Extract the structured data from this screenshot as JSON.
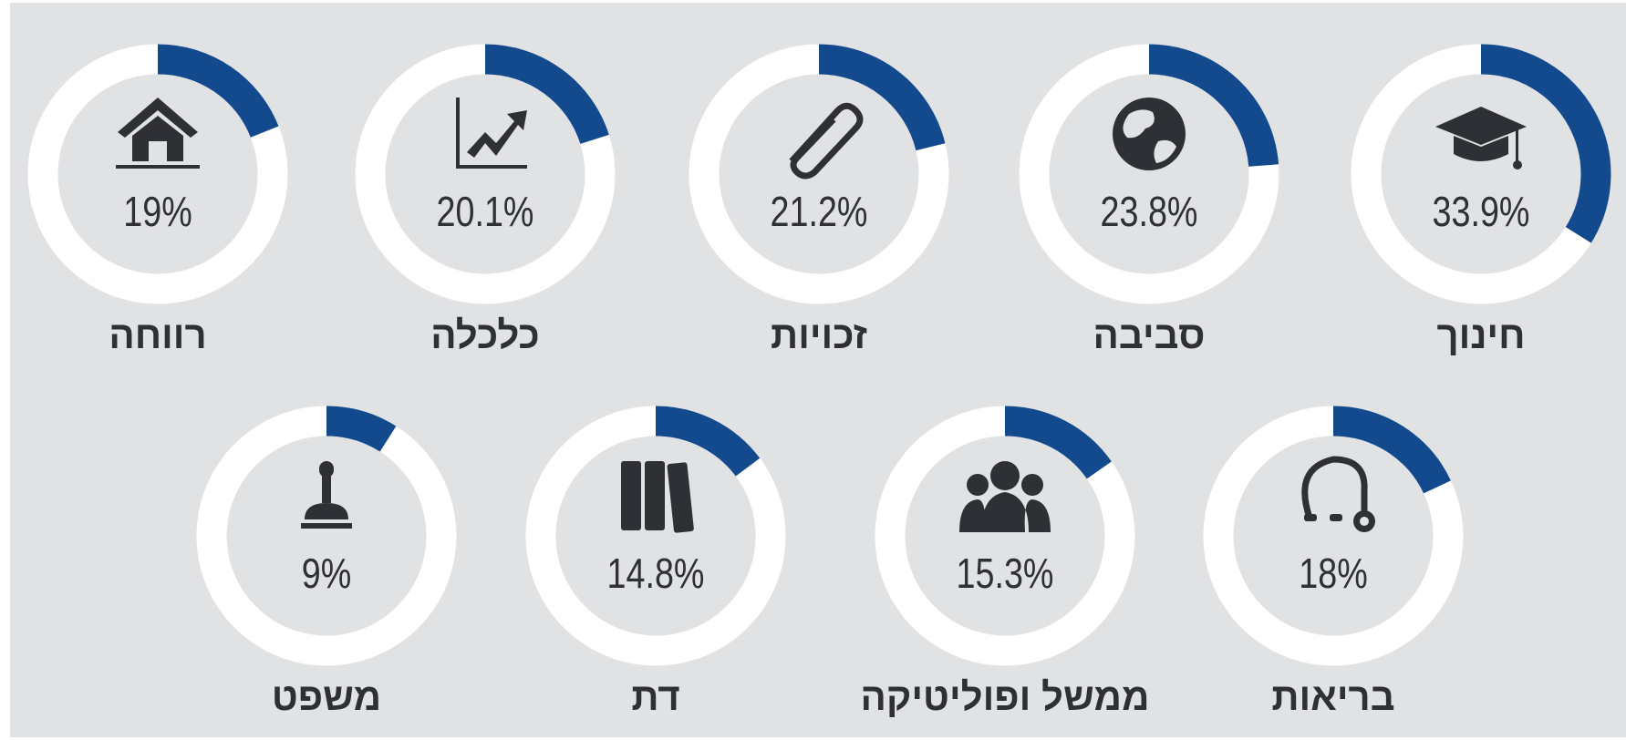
{
  "chart_data": {
    "type": "gauge",
    "categories": [
      "חינוך",
      "סביבה",
      "זכויות",
      "כלכלה",
      "רווחה",
      "בריאות",
      "ממשל ופוליטיקה",
      "דת",
      "משפט"
    ],
    "values": [
      33.9,
      23.8,
      21.2,
      20.1,
      19,
      18,
      15.3,
      14.8,
      9
    ],
    "value_labels": [
      "33.9%",
      "23.8%",
      "21.2%",
      "20.1%",
      "19%",
      "18%",
      "15.3%",
      "14.8%",
      "9%"
    ],
    "color": "#134a8e"
  }
}
